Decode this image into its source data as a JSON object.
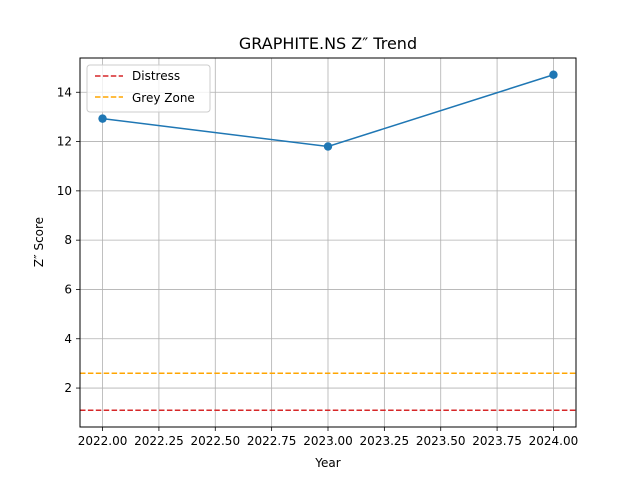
{
  "chart_data": {
    "type": "line",
    "title": "GRAPHITE.NS Z″ Trend",
    "xlabel": "Year",
    "ylabel": "Z″ Score",
    "x": [
      2022.0,
      2023.0,
      2024.0
    ],
    "series": [
      {
        "values": [
          12.93,
          11.8,
          14.71
        ],
        "color": "#1f77b4"
      }
    ],
    "reference_lines": [
      {
        "name": "Distress",
        "y": 1.1,
        "color": "#d62728",
        "style": "dashed"
      },
      {
        "name": "Grey Zone",
        "y": 2.6,
        "color": "#ffa500",
        "style": "dashed"
      }
    ],
    "xlim": [
      1981.9,
      2024.1
    ],
    "ylim": [
      0.42,
      15.39
    ],
    "xticks": [
      2022.0,
      2022.25,
      2022.5,
      2022.75,
      2023.0,
      2023.25,
      2023.5,
      2023.75,
      2024.0
    ],
    "xtick_labels": [
      "2022.00",
      "2022.25",
      "2022.50",
      "2022.75",
      "2023.00",
      "2023.25",
      "2023.50",
      "2023.75",
      "2024.00"
    ],
    "yticks": [
      2,
      4,
      6,
      8,
      10,
      12,
      14
    ],
    "ytick_labels": [
      "2",
      "4",
      "6",
      "8",
      "10",
      "12",
      "14"
    ],
    "grid": true,
    "legend_position": "upper-left"
  }
}
